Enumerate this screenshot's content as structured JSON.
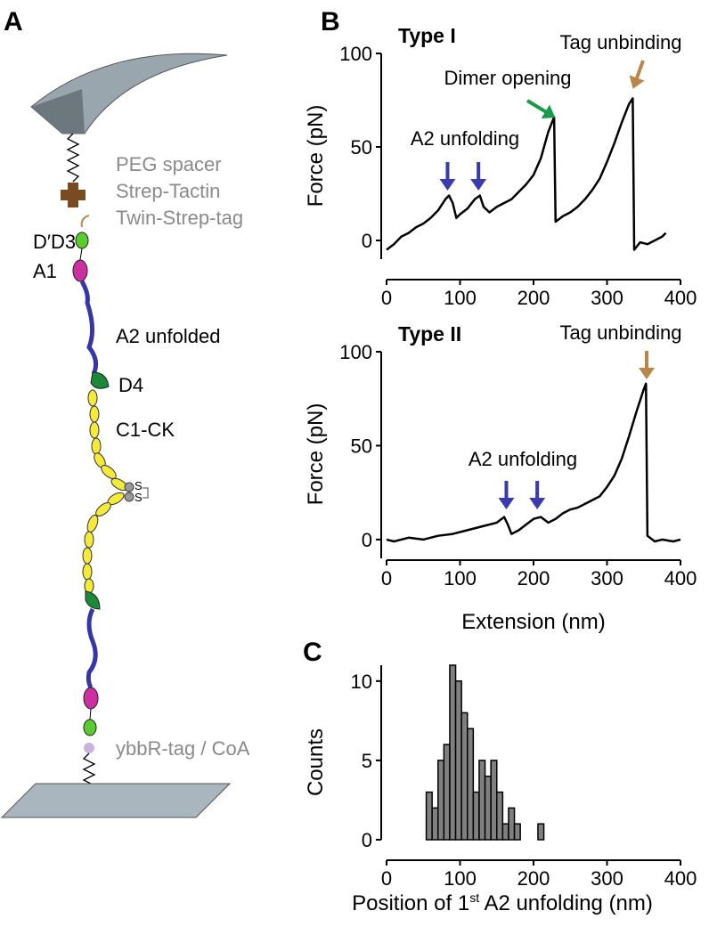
{
  "panel_labels": [
    "A",
    "B",
    "C"
  ],
  "diagram": {
    "labels": [
      "PEG spacer",
      "Strep-Tactin",
      "Twin-Strep-tag",
      "D′D3",
      "A1",
      "A2 unfolded",
      "D4",
      "C1-CK",
      "ybbR-tag / CoA"
    ],
    "disulfide": [
      "S",
      "S"
    ]
  },
  "chart_data": [
    {
      "type": "line",
      "title": "Type I",
      "y_label": "Force (pN)",
      "xlim": [
        0,
        400
      ],
      "ylim": [
        -10,
        100
      ],
      "xticks": [
        0,
        100,
        200,
        300,
        400
      ],
      "yticks": [
        0,
        50,
        100
      ],
      "annotations": [
        {
          "text": "A2 unfolding",
          "color": "#3b3bb0"
        },
        {
          "text": "Dimer opening",
          "color": "#1a9a4a"
        },
        {
          "text": "Tag unbinding",
          "color": "#b8864a"
        }
      ],
      "x": [
        0,
        10,
        20,
        30,
        40,
        50,
        60,
        70,
        80,
        85,
        90,
        95,
        100,
        110,
        120,
        127,
        132,
        140,
        150,
        160,
        170,
        180,
        190,
        200,
        210,
        220,
        228,
        230,
        240,
        250,
        260,
        270,
        280,
        290,
        300,
        310,
        320,
        330,
        335,
        337,
        345,
        355,
        365,
        375,
        380
      ],
      "series": [
        {
          "color": "#000000",
          "values": [
            -5,
            -2,
            2,
            4,
            7,
            9,
            12,
            16,
            22,
            24,
            20,
            12,
            14,
            17,
            22,
            24,
            18,
            15,
            18,
            20,
            22,
            26,
            30,
            35,
            44,
            58,
            66,
            10,
            13,
            15,
            18,
            22,
            27,
            33,
            42,
            52,
            63,
            73,
            76,
            -5,
            -1,
            -2,
            0,
            2,
            4
          ]
        }
      ]
    },
    {
      "type": "line",
      "title": "Type II",
      "x_label": "Extension (nm)",
      "y_label": "Force (pN)",
      "xlim": [
        0,
        400
      ],
      "ylim": [
        -10,
        100
      ],
      "xticks": [
        0,
        100,
        200,
        300,
        400
      ],
      "yticks": [
        0,
        50,
        100
      ],
      "annotations": [
        {
          "text": "A2 unfolding",
          "color": "#3b3bb0"
        },
        {
          "text": "Tag unbinding",
          "color": "#b8864a"
        }
      ],
      "x": [
        0,
        10,
        20,
        30,
        50,
        70,
        90,
        110,
        130,
        150,
        160,
        165,
        170,
        180,
        190,
        200,
        210,
        220,
        230,
        240,
        250,
        260,
        270,
        280,
        290,
        300,
        310,
        320,
        330,
        340,
        350,
        353,
        355,
        365,
        375,
        390,
        400
      ],
      "series": [
        {
          "color": "#000000",
          "values": [
            0,
            -1,
            0,
            1,
            0,
            2,
            3,
            5,
            7,
            9,
            12,
            8,
            3,
            5,
            8,
            11,
            12,
            9,
            11,
            14,
            16,
            17,
            19,
            21,
            23,
            28,
            34,
            43,
            55,
            68,
            80,
            83,
            2,
            -1,
            0,
            -1,
            0
          ]
        }
      ]
    },
    {
      "type": "histogram",
      "x_label_parts": [
        "Position of 1",
        "st",
        " A2 unfolding (nm)"
      ],
      "y_label": "Counts",
      "color": "#808080",
      "xlim": [
        0,
        400
      ],
      "ylim": [
        0,
        11
      ],
      "xticks": [
        0,
        100,
        200,
        300,
        400
      ],
      "yticks": [
        0,
        5,
        10
      ],
      "bins": [
        54,
        62,
        70,
        78,
        86,
        94,
        102,
        110,
        118,
        126,
        134,
        142,
        150,
        158,
        166,
        174,
        182,
        190,
        198,
        206,
        214
      ],
      "counts": [
        3,
        2,
        5,
        6,
        11,
        10,
        8,
        7,
        3,
        5,
        4,
        5,
        3,
        1,
        2,
        1,
        0,
        0,
        0,
        1
      ]
    }
  ]
}
